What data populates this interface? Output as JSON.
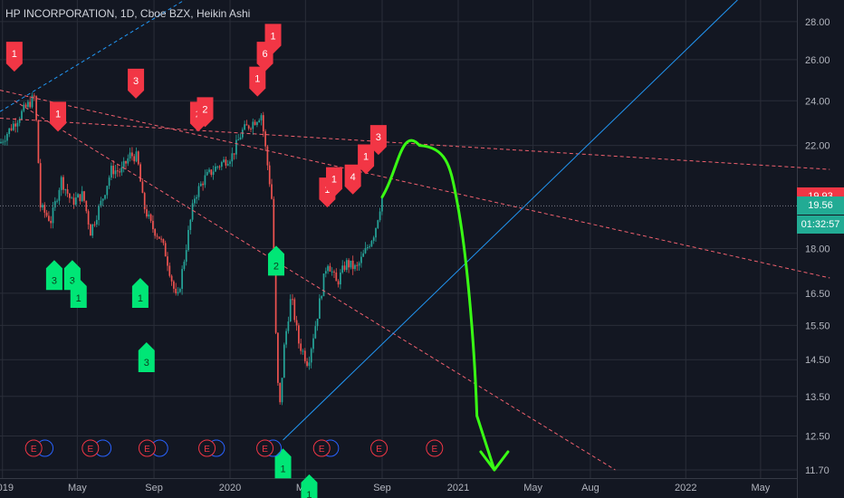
{
  "chart_title": "HP INCORPORATION, 1D, Cboe BZX, Heikin Ashi",
  "price_tags": [
    {
      "text": "19.93",
      "color": "#f23645",
      "price": 19.93
    },
    {
      "text": "19.56",
      "color": "#22ab94",
      "price": 19.56
    },
    {
      "text": "01:32:57",
      "color": "#22ab94",
      "price": 18.85
    }
  ],
  "colors": {
    "background": "#131722",
    "grid": "#2a2e39",
    "up": "#26a69a",
    "down": "#ef5350",
    "sell_marker": "#f23645",
    "buy_marker": "#00e676",
    "trend_red": "#f0606e",
    "trend_blue": "#2196f3",
    "projection": "#39ff14"
  },
  "chart_data": {
    "type": "candlestick",
    "title": "HP INCORPORATION, 1D, Cboe BZX, Heikin Ashi",
    "ylim": [
      11.7,
      29.2
    ],
    "y_scale": "log",
    "y_ticks": [
      "28.00",
      "26.00",
      "24.00",
      "22.00",
      "18.00",
      "16.50",
      "15.50",
      "14.50",
      "13.50",
      "12.50",
      "11.70"
    ],
    "x_ticks": [
      "2019",
      "May",
      "Sep",
      "2020",
      "May",
      "Sep",
      "2021",
      "May",
      "Aug",
      "2022",
      "May"
    ],
    "x_tick_dates": [
      "2019-01-01",
      "2019-05-01",
      "2019-09-01",
      "2020-01-01",
      "2020-05-01",
      "2020-09-01",
      "2021-01-01",
      "2021-05-01",
      "2021-08-01",
      "2022-01-01",
      "2022-05-01"
    ],
    "ohlc_path": [
      [
        "2018-12-28",
        22.1
      ],
      [
        "2019-02-05",
        23.6
      ],
      [
        "2019-02-22",
        24.2
      ],
      [
        "2019-03-03",
        19.5
      ],
      [
        "2019-03-20",
        19.0
      ],
      [
        "2019-04-05",
        20.6
      ],
      [
        "2019-04-22",
        19.7
      ],
      [
        "2019-05-10",
        20.0
      ],
      [
        "2019-05-22",
        18.6
      ],
      [
        "2019-06-10",
        19.8
      ],
      [
        "2019-06-25",
        21.0
      ],
      [
        "2019-07-10",
        20.9
      ],
      [
        "2019-07-25",
        21.6
      ],
      [
        "2019-08-05",
        21.5
      ],
      [
        "2019-08-15",
        19.6
      ],
      [
        "2019-08-28",
        18.8
      ],
      [
        "2019-09-10",
        18.4
      ],
      [
        "2019-09-20",
        17.8
      ],
      [
        "2019-10-01",
        16.8
      ],
      [
        "2019-10-08",
        16.2
      ],
      [
        "2019-10-20",
        17.7
      ],
      [
        "2019-11-05",
        19.9
      ],
      [
        "2019-11-20",
        20.6
      ],
      [
        "2019-12-10",
        21.1
      ],
      [
        "2020-01-05",
        21.6
      ],
      [
        "2020-01-20",
        22.6
      ],
      [
        "2020-02-10",
        23.1
      ],
      [
        "2020-02-20",
        23.4
      ],
      [
        "2020-02-28",
        21.6
      ],
      [
        "2020-03-08",
        19.8
      ],
      [
        "2020-03-15",
        14.8
      ],
      [
        "2020-03-20",
        13.0
      ],
      [
        "2020-03-28",
        14.9
      ],
      [
        "2020-04-08",
        16.4
      ],
      [
        "2020-04-20",
        15.0
      ],
      [
        "2020-05-05",
        14.4
      ],
      [
        "2020-05-20",
        15.8
      ],
      [
        "2020-06-05",
        17.6
      ],
      [
        "2020-06-20",
        16.8
      ],
      [
        "2020-07-05",
        17.5
      ],
      [
        "2020-07-22",
        17.3
      ],
      [
        "2020-08-05",
        17.9
      ],
      [
        "2020-08-20",
        18.6
      ],
      [
        "2020-09-01",
        19.9
      ]
    ],
    "buy_markers": [
      {
        "date": "2019-03-25",
        "price": 17.6,
        "label": "3"
      },
      {
        "date": "2019-04-23",
        "price": 17.6,
        "label": "3"
      },
      {
        "date": "2019-05-03",
        "price": 17.0,
        "label": "1"
      },
      {
        "date": "2019-08-10",
        "price": 17.0,
        "label": "1"
      },
      {
        "date": "2019-08-20",
        "price": 15.0,
        "label": "3"
      },
      {
        "date": "2020-03-15",
        "price": 18.1,
        "label": "2"
      },
      {
        "date": "2020-03-26",
        "price": 12.2,
        "label": "1"
      },
      {
        "date": "2020-05-07",
        "price": 11.6,
        "label": "1"
      }
    ],
    "sell_markers": [
      {
        "date": "2019-01-20",
        "price": 25.4,
        "label": "1"
      },
      {
        "date": "2019-03-31",
        "price": 22.6,
        "label": "1"
      },
      {
        "date": "2019-08-03",
        "price": 24.1,
        "label": "3"
      },
      {
        "date": "2019-11-11",
        "price": 22.6,
        "label": "2"
      },
      {
        "date": "2019-11-22",
        "price": 22.8,
        "label": "2"
      },
      {
        "date": "2020-02-14",
        "price": 24.2,
        "label": "1"
      },
      {
        "date": "2020-02-26",
        "price": 25.4,
        "label": "6"
      },
      {
        "date": "2020-03-10",
        "price": 26.3,
        "label": "1"
      },
      {
        "date": "2020-06-05",
        "price": 19.5,
        "label": "1"
      },
      {
        "date": "2020-06-16",
        "price": 19.9,
        "label": "1"
      },
      {
        "date": "2020-07-16",
        "price": 20.0,
        "label": "4"
      },
      {
        "date": "2020-08-06",
        "price": 20.8,
        "label": "1"
      },
      {
        "date": "2020-08-26",
        "price": 21.6,
        "label": "3"
      }
    ],
    "earnings_markers": {
      "label": "E",
      "dates": [
        "2019-02-20",
        "2019-05-22",
        "2019-08-21",
        "2019-11-25",
        "2020-02-26",
        "2020-05-27",
        "2020-08-27",
        "2020-11-24"
      ],
      "dividend_dates": [
        "2019-03-10",
        "2019-06-11",
        "2019-09-10",
        "2019-12-10",
        "2020-03-10",
        "2020-06-10"
      ]
    },
    "trendlines": [
      {
        "style": "dashed",
        "color": "red",
        "from": [
          "2018-12-28",
          24.5
        ],
        "to": [
          "2022-08-20",
          17.0
        ]
      },
      {
        "style": "dashed",
        "color": "red",
        "from": [
          "2018-12-28",
          23.2
        ],
        "to": [
          "2022-08-20",
          21.0
        ]
      },
      {
        "style": "dashed",
        "color": "red",
        "from": [
          "2019-01-20",
          24.0
        ],
        "to": [
          "2021-09-10",
          11.7
        ]
      },
      {
        "style": "dashed",
        "color": "blue",
        "from": [
          "2018-12-28",
          23.5
        ],
        "to": [
          "2019-10-20",
          29.2
        ]
      },
      {
        "style": "solid",
        "color": "blue",
        "from": [
          "2020-03-26",
          12.4
        ],
        "to": [
          "2022-03-25",
          29.2
        ]
      }
    ],
    "reference_price": 19.56,
    "projection": {
      "color": "green",
      "path": [
        [
          "2020-09-01",
          19.9
        ],
        [
          "2020-10-31",
          22.0
        ],
        [
          "2020-12-28",
          20.0
        ],
        [
          "2021-01-31",
          13.0
        ],
        [
          "2021-02-28",
          11.7
        ]
      ],
      "arrow": "down"
    }
  }
}
